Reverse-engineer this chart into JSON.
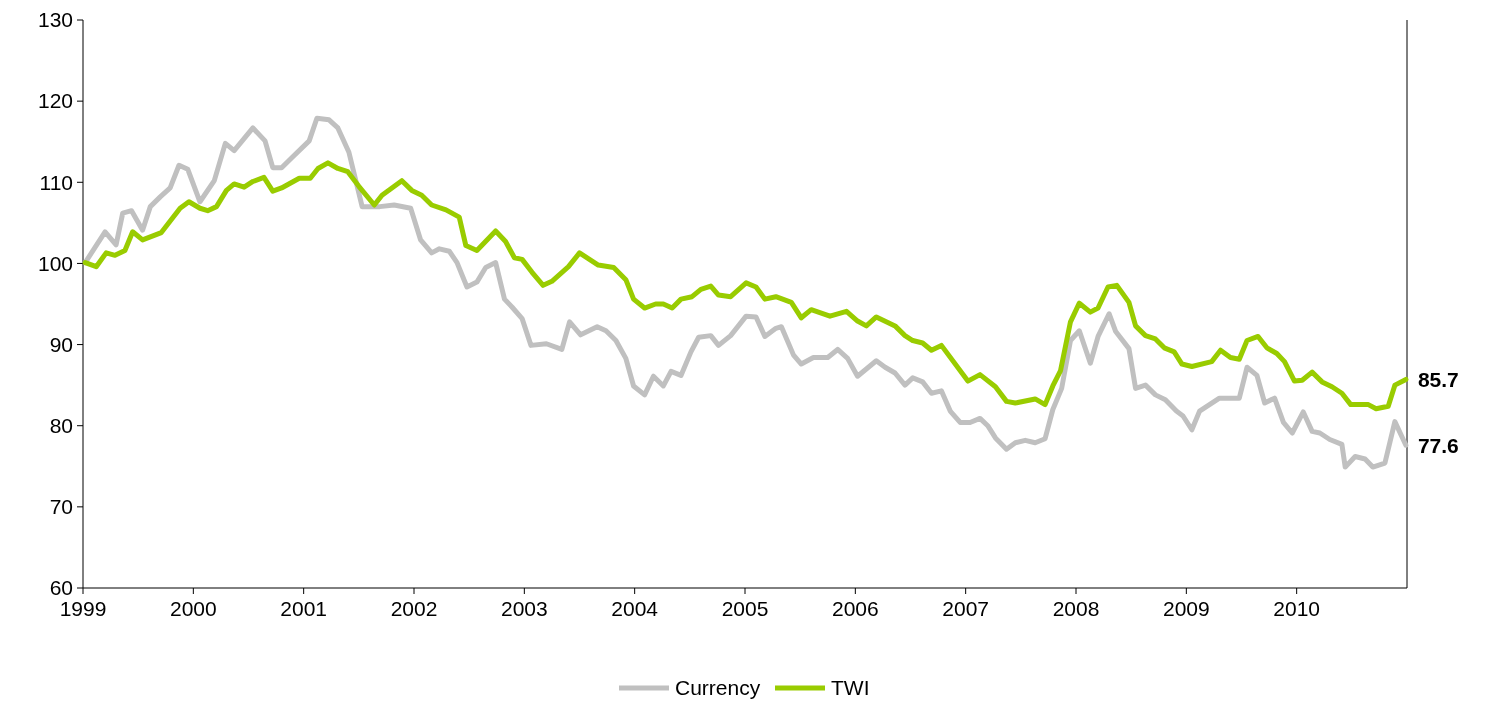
{
  "chart_data": {
    "type": "line",
    "xlim": [
      1999,
      2011
    ],
    "xticks": [
      1999,
      2000,
      2001,
      2002,
      2003,
      2004,
      2005,
      2006,
      2007,
      2008,
      2009,
      2010
    ],
    "ylim": [
      60,
      130
    ],
    "yticks": [
      60,
      70,
      80,
      90,
      100,
      110,
      120,
      130
    ],
    "grid": false,
    "legend": "bottom",
    "marker": "none",
    "line_style": "solid",
    "series": [
      {
        "name": "Currency",
        "color": "#c0c0c0",
        "x": [
          1999.02,
          1999.2,
          1999.3,
          1999.36,
          1999.44,
          1999.54,
          1999.61,
          1999.7,
          1999.79,
          1999.87,
          1999.95,
          2000.06,
          2000.19,
          2000.29,
          2000.37,
          2000.54,
          2000.65,
          2000.72,
          2000.8,
          2000.89,
          2001.05,
          2001.12,
          2001.23,
          2001.31,
          2001.41,
          2001.53,
          2001.69,
          2001.82,
          2001.97,
          2002.06,
          2002.16,
          2002.23,
          2002.32,
          2002.39,
          2002.48,
          2002.57,
          2002.65,
          2002.74,
          2002.82,
          2002.89,
          2002.98,
          2003.06,
          2003.2,
          2003.34,
          2003.41,
          2003.51,
          2003.66,
          2003.74,
          2003.83,
          2003.92,
          2003.99,
          2004.09,
          2004.17,
          2004.26,
          2004.33,
          2004.42,
          2004.51,
          2004.58,
          2004.69,
          2004.76,
          2004.87,
          2005.01,
          2005.1,
          2005.18,
          2005.28,
          2005.33,
          2005.44,
          2005.51,
          2005.62,
          2005.75,
          2005.84,
          2005.93,
          2006.02,
          2006.19,
          2006.27,
          2006.36,
          2006.45,
          2006.52,
          2006.61,
          2006.69,
          2006.78,
          2006.86,
          2006.95,
          2007.04,
          2007.13,
          2007.2,
          2007.27,
          2007.37,
          2007.45,
          2007.54,
          2007.63,
          2007.72,
          2007.79,
          2007.87,
          2007.95,
          2008.03,
          2008.13,
          2008.2,
          2008.3,
          2008.36,
          2008.48,
          2008.54,
          2008.63,
          2008.72,
          2008.81,
          2008.91,
          2008.97,
          2009.05,
          2009.12,
          2009.21,
          2009.3,
          2009.48,
          2009.55,
          2009.64,
          2009.71,
          2009.8,
          2009.88,
          2009.96,
          2010.06,
          2010.14,
          2010.21,
          2010.3,
          2010.41,
          2010.44,
          2010.53,
          2010.62,
          2010.69,
          2010.8,
          2010.89,
          2010.99
        ],
        "values": [
          100.1,
          103.9,
          102.3,
          106.2,
          106.5,
          104.1,
          107,
          108.2,
          109.3,
          112.1,
          111.6,
          107.6,
          110.2,
          114.8,
          113.9,
          116.7,
          115.1,
          111.8,
          111.8,
          113,
          115.1,
          117.9,
          117.7,
          116.7,
          113.7,
          107,
          107,
          107.2,
          106.8,
          102.9,
          101.3,
          101.8,
          101.5,
          100.1,
          97.1,
          97.7,
          99.5,
          100.1,
          95.6,
          94.6,
          93.2,
          89.9,
          90.1,
          89.4,
          92.8,
          91.2,
          92.2,
          91.7,
          90.5,
          88.3,
          84.9,
          83.8,
          86.1,
          84.9,
          86.7,
          86.2,
          89.1,
          90.9,
          91.1,
          89.9,
          91.1,
          93.5,
          93.4,
          91,
          92,
          92.2,
          88.7,
          87.6,
          88.4,
          88.4,
          89.4,
          88.3,
          86.1,
          88,
          87.2,
          86.5,
          85,
          85.9,
          85.4,
          84,
          84.3,
          81.8,
          80.4,
          80.4,
          80.9,
          80,
          78.5,
          77.1,
          77.9,
          78.2,
          77.9,
          78.4,
          82,
          84.6,
          90.5,
          91.7,
          87.7,
          91,
          93.8,
          91.6,
          89.5,
          84.6,
          85,
          83.8,
          83.2,
          81.8,
          81.2,
          79.5,
          81.8,
          82.6,
          83.4,
          83.4,
          87.2,
          86.2,
          82.8,
          83.4,
          80.4,
          79.1,
          81.7,
          79.3,
          79.1,
          78.3,
          77.7,
          74.9,
          76.2,
          75.9,
          74.9,
          75.4,
          80.5,
          77.6
        ]
      },
      {
        "name": "TWI",
        "color": "#99cc00",
        "x": [
          1999.02,
          1999.12,
          1999.21,
          1999.29,
          1999.38,
          1999.45,
          1999.54,
          1999.71,
          1999.88,
          1999.96,
          2000.06,
          2000.13,
          2000.21,
          2000.3,
          2000.37,
          2000.46,
          2000.54,
          2000.64,
          2000.72,
          2000.8,
          2000.96,
          2001.06,
          2001.13,
          2001.22,
          2001.31,
          2001.4,
          2001.5,
          2001.64,
          2001.71,
          2001.89,
          2001.98,
          2002.07,
          2002.16,
          2002.29,
          2002.41,
          2002.47,
          2002.57,
          2002.74,
          2002.83,
          2002.91,
          2002.98,
          2003.07,
          2003.17,
          2003.25,
          2003.4,
          2003.5,
          2003.67,
          2003.81,
          2003.92,
          2003.99,
          2004.09,
          2004.19,
          2004.26,
          2004.34,
          2004.42,
          2004.52,
          2004.6,
          2004.69,
          2004.76,
          2004.87,
          2005.01,
          2005.1,
          2005.18,
          2005.28,
          2005.42,
          2005.51,
          2005.6,
          2005.77,
          2005.92,
          2006.02,
          2006.1,
          2006.19,
          2006.36,
          2006.45,
          2006.52,
          2006.61,
          2006.69,
          2006.78,
          2007.02,
          2007.13,
          2007.27,
          2007.37,
          2007.45,
          2007.63,
          2007.72,
          2007.79,
          2007.86,
          2007.95,
          2008.03,
          2008.13,
          2008.2,
          2008.29,
          2008.37,
          2008.48,
          2008.54,
          2008.63,
          2008.72,
          2008.8,
          2008.89,
          2008.96,
          2009.05,
          2009.23,
          2009.31,
          2009.4,
          2009.48,
          2009.55,
          2009.65,
          2009.73,
          2009.82,
          2009.89,
          2009.98,
          2010.05,
          2010.14,
          2010.23,
          2010.32,
          2010.41,
          2010.49,
          2010.65,
          2010.72,
          2010.83,
          2010.89,
          2010.99
        ],
        "values": [
          100.1,
          99.6,
          101.3,
          101,
          101.6,
          103.9,
          102.9,
          103.8,
          106.8,
          107.6,
          106.8,
          106.5,
          107,
          109,
          109.8,
          109.4,
          110.1,
          110.6,
          108.9,
          109.3,
          110.5,
          110.5,
          111.7,
          112.4,
          111.7,
          111.3,
          109.5,
          107.2,
          108.4,
          110.2,
          109,
          108.4,
          107.2,
          106.6,
          105.7,
          102.2,
          101.6,
          104,
          102.7,
          100.7,
          100.5,
          98.9,
          97.3,
          97.8,
          99.6,
          101.3,
          99.8,
          99.5,
          98,
          95.6,
          94.5,
          95,
          95,
          94.5,
          95.6,
          95.9,
          96.8,
          97.2,
          96.1,
          95.9,
          97.6,
          97.1,
          95.6,
          95.9,
          95.2,
          93.3,
          94.3,
          93.5,
          94.1,
          92.9,
          92.3,
          93.4,
          92.3,
          91.1,
          90.5,
          90.2,
          89.3,
          89.9,
          85.5,
          86.3,
          84.8,
          83,
          82.8,
          83.3,
          82.6,
          84.9,
          86.8,
          92.8,
          95.1,
          94,
          94.5,
          97.1,
          97.3,
          95.2,
          92.3,
          91.1,
          90.7,
          89.6,
          89.1,
          87.6,
          87.3,
          87.9,
          89.3,
          88.4,
          88.2,
          90.5,
          91,
          89.6,
          88.9,
          87.9,
          85.5,
          85.6,
          86.6,
          85.4,
          84.8,
          84,
          82.6,
          82.6,
          82.1,
          82.4,
          85,
          85.7
        ]
      }
    ],
    "annotations": [
      {
        "text": "85.7",
        "x": 2010.99,
        "y": 85.7
      },
      {
        "text": "77.6",
        "x": 2010.99,
        "y": 77.6
      }
    ]
  }
}
